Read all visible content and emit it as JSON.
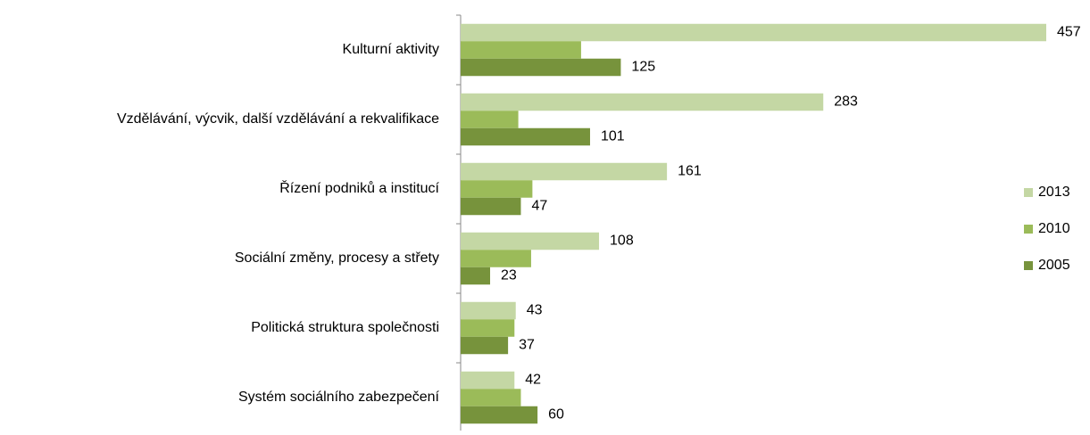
{
  "chart_data": {
    "type": "hbar",
    "categories": [
      "Kulturní aktivity",
      "Vzdělávání, výcvik, další vzdělávání a rekvalifikace",
      "Řízení podniků a institucí",
      "Sociální změny, procesy a střety",
      "Politická struktura společnosti",
      "Systém sociálního zabezpečení"
    ],
    "series": [
      {
        "name": "2013",
        "color": "#c4d7a4",
        "data_labels": true,
        "values": [
          457,
          283,
          161,
          108,
          43,
          42
        ]
      },
      {
        "name": "2010",
        "color": "#9bbb59",
        "data_labels": false,
        "values": [
          94,
          45,
          56,
          55,
          42,
          47
        ]
      },
      {
        "name": "2005",
        "color": "#77933c",
        "data_labels": true,
        "values": [
          125,
          101,
          47,
          23,
          37,
          60
        ]
      }
    ],
    "legend": "right"
  }
}
